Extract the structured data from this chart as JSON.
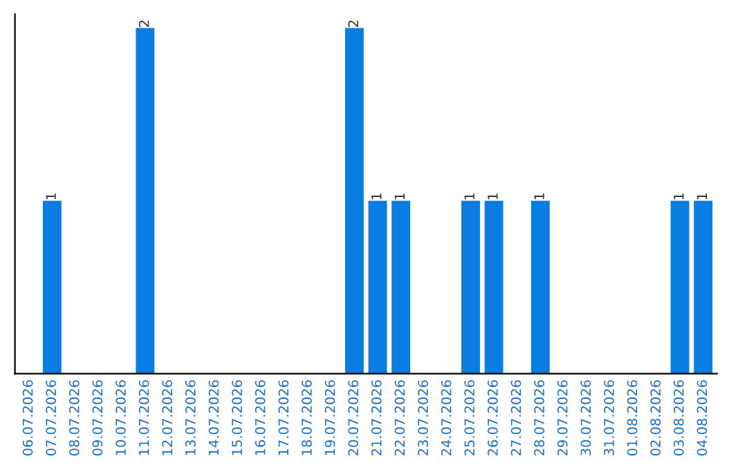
{
  "chart_data": {
    "type": "bar",
    "categories": [
      "06.07.2026",
      "07.07.2026",
      "08.07.2026",
      "09.07.2026",
      "10.07.2026",
      "11.07.2026",
      "12.07.2026",
      "13.07.2026",
      "14.07.2026",
      "15.07.2026",
      "16.07.2026",
      "17.07.2026",
      "18.07.2026",
      "19.07.2026",
      "20.07.2026",
      "21.07.2026",
      "22.07.2026",
      "23.07.2026",
      "24.07.2026",
      "25.07.2026",
      "26.07.2026",
      "27.07.2026",
      "28.07.2026",
      "29.07.2026",
      "30.07.2026",
      "31.07.2026",
      "01.08.2026",
      "02.08.2026",
      "03.08.2026",
      "04.08.2026"
    ],
    "values": [
      0,
      1,
      0,
      0,
      0,
      2,
      0,
      0,
      0,
      0,
      0,
      0,
      0,
      0,
      2,
      1,
      1,
      0,
      0,
      1,
      1,
      0,
      1,
      0,
      0,
      0,
      0,
      0,
      1,
      1
    ],
    "value_labels": [
      null,
      "1",
      null,
      null,
      null,
      "2",
      null,
      null,
      null,
      null,
      null,
      null,
      null,
      null,
      "2",
      "1",
      "1",
      null,
      null,
      "1",
      "1",
      null,
      "1",
      null,
      null,
      null,
      null,
      null,
      "1",
      "1"
    ],
    "color": "#0a7de3",
    "tick_labels": "x",
    "grid": false
  }
}
